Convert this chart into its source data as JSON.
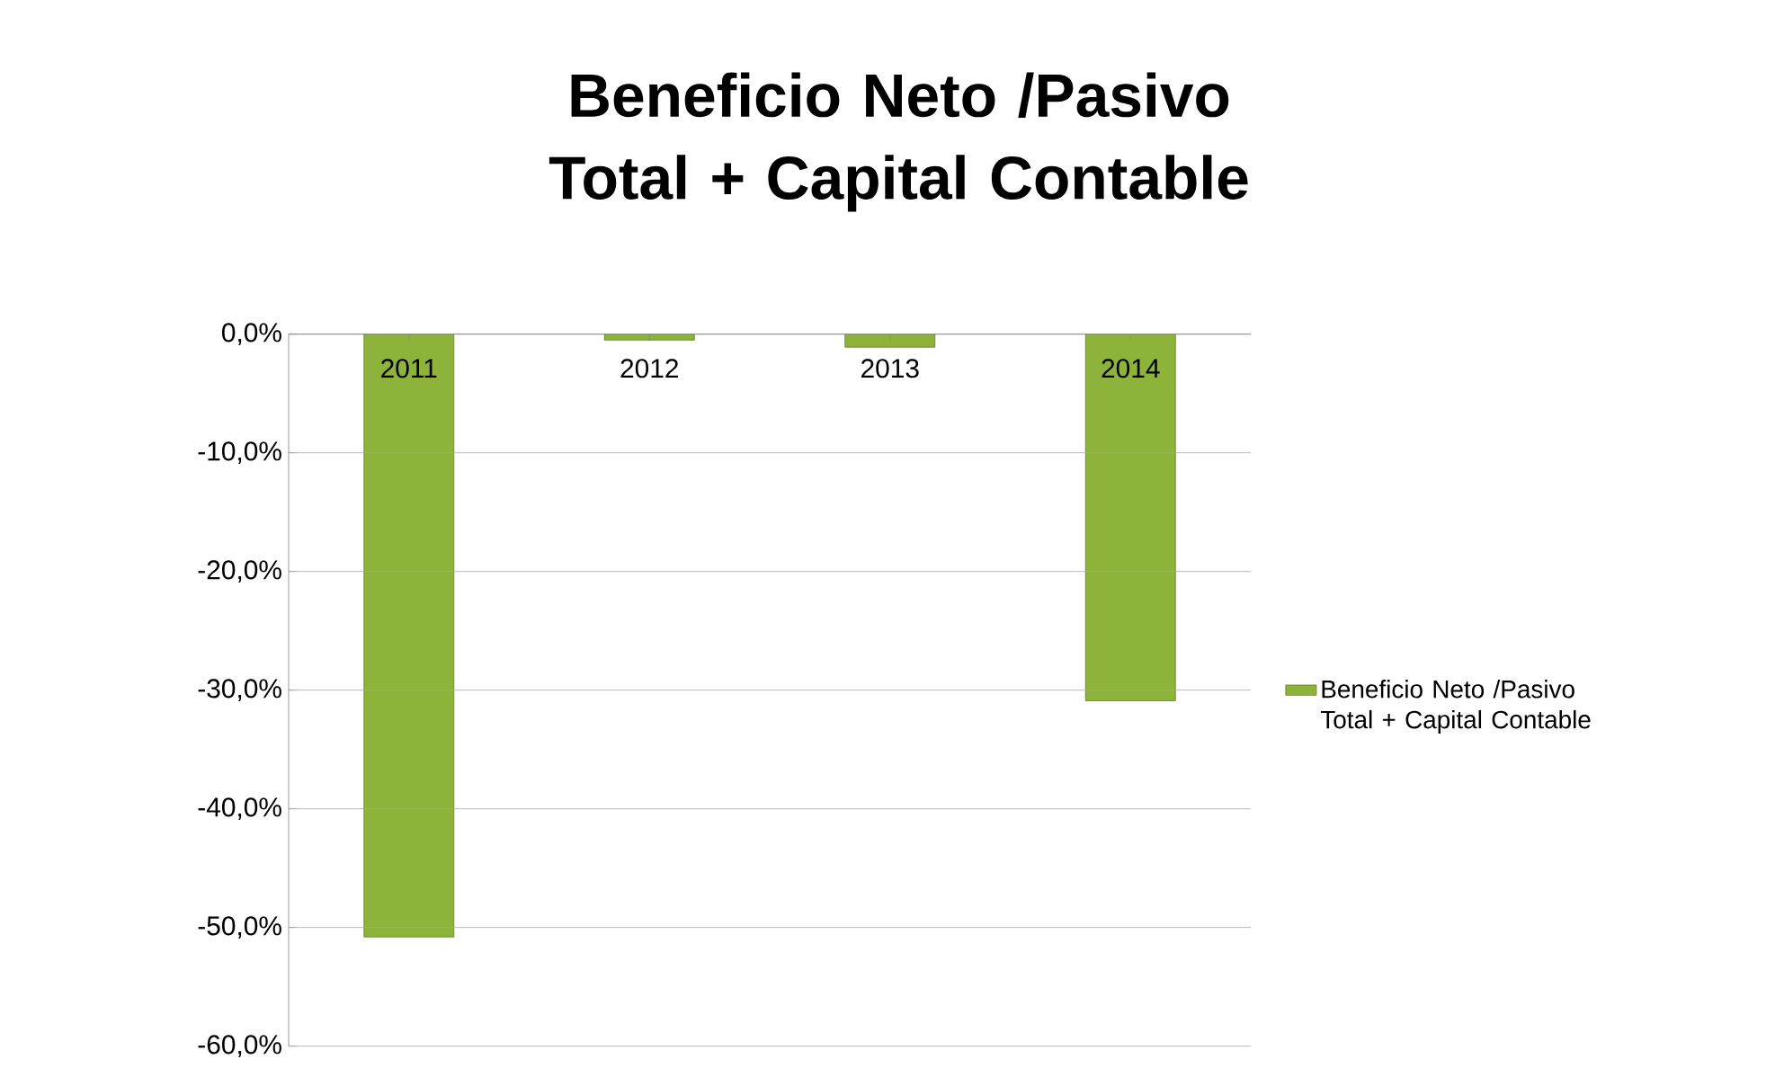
{
  "chart_data": {
    "type": "bar",
    "title": "Beneficio Neto /Pasivo Total + Capital Contable",
    "categories": [
      "2011",
      "2012",
      "2013",
      "2014"
    ],
    "series": [
      {
        "name": "Beneficio Neto /Pasivo Total + Capital Contable",
        "color": "#8db33a",
        "values": [
          -50.8,
          -0.5,
          -1.1,
          -30.9
        ]
      }
    ],
    "ylim": [
      -60,
      0
    ],
    "yticks": [
      {
        "value": -60,
        "label": "-60,0%"
      },
      {
        "value": -50,
        "label": "-50,0%"
      },
      {
        "value": -40,
        "label": "-40,0%"
      },
      {
        "value": -30,
        "label": "-30,0%"
      },
      {
        "value": -20,
        "label": "-20,0%"
      },
      {
        "value": -10,
        "label": "-10,0%"
      },
      {
        "value": 0,
        "label": "0,0%"
      }
    ],
    "grid": "y",
    "legend": "right"
  }
}
